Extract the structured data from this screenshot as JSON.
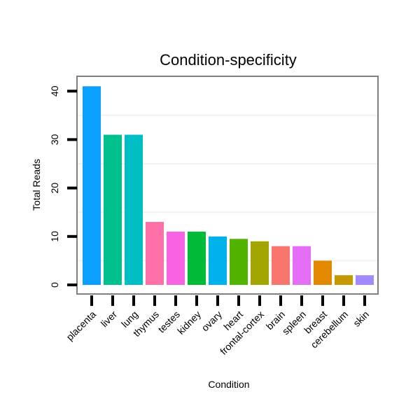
{
  "chart_data": {
    "type": "bar",
    "title": "Condition-specificity",
    "xlabel": "Condition",
    "ylabel": "Total Reads",
    "categories": [
      "placenta",
      "liver",
      "lung",
      "thymus",
      "testes",
      "kidney",
      "ovary",
      "heart",
      "frontal-cortex",
      "brain",
      "spleen",
      "breast",
      "cerebellum",
      "skin"
    ],
    "values": [
      41,
      31,
      31,
      13,
      11,
      11,
      10,
      9.5,
      9,
      8,
      8,
      5,
      2,
      2
    ],
    "colors": [
      "#0AA0FF",
      "#00C08E",
      "#00BFC4",
      "#FF6FA8",
      "#F763E0",
      "#00BA38",
      "#00B2EB",
      "#53B400",
      "#A3A500",
      "#F8766D",
      "#E46EF6",
      "#E38900",
      "#C49A00",
      "#A58AFF"
    ],
    "yticks": [
      0,
      10,
      20,
      30,
      40
    ],
    "ylim": [
      -1.7,
      43
    ],
    "grid": true,
    "legend": "none"
  }
}
